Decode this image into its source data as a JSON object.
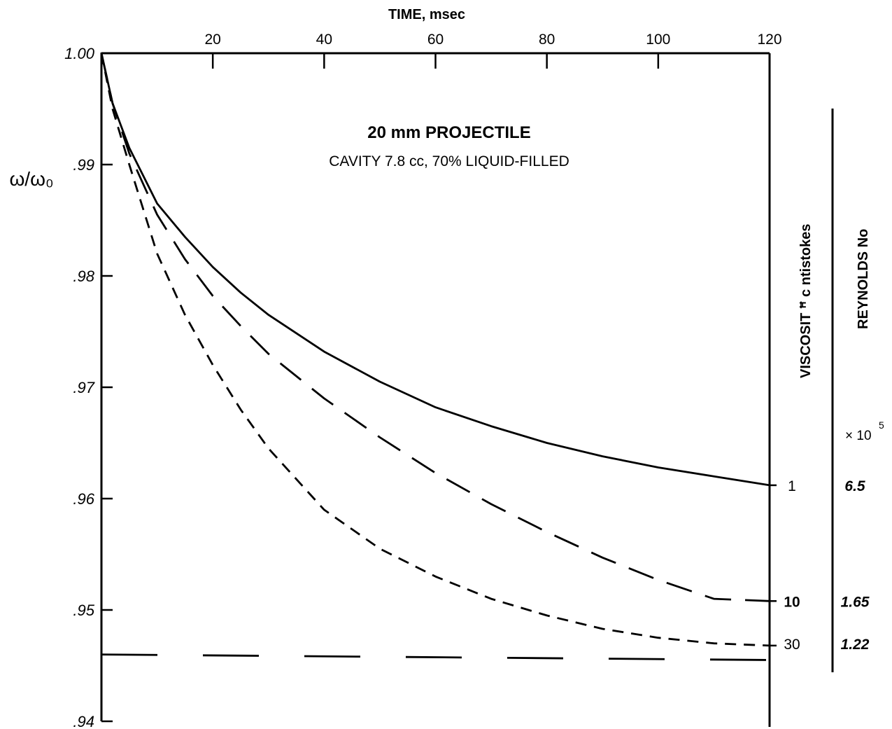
{
  "chart_data": {
    "type": "line",
    "title": "20 mm PROJECTILE",
    "subtitle": "CAVITY 7.8 cc, 70% LIQUID-FILLED",
    "xlabel": "TIME, msec",
    "ylabel": "ω/ω₀",
    "xlim": [
      0,
      120
    ],
    "ylim": [
      0.94,
      1.0
    ],
    "x_ticks": [
      "20",
      "40",
      "60",
      "80",
      "100",
      "120"
    ],
    "y_ticks": [
      ".94",
      ".95",
      ".96",
      ".97",
      ".98",
      ".99",
      "1.00"
    ],
    "series": [
      {
        "name": "1",
        "reynolds": "6.5",
        "style": "solid",
        "x": [
          0,
          2,
          5,
          10,
          15,
          20,
          25,
          30,
          40,
          50,
          60,
          70,
          80,
          90,
          100,
          110,
          120
        ],
        "y": [
          1.0,
          0.9955,
          0.9915,
          0.9865,
          0.9835,
          0.9808,
          0.9785,
          0.9765,
          0.9732,
          0.9705,
          0.9682,
          0.9665,
          0.965,
          0.9638,
          0.9628,
          0.962,
          0.9612
        ]
      },
      {
        "name": "10",
        "reynolds": "1.65",
        "style": "long-dash",
        "x": [
          0,
          2,
          5,
          10,
          15,
          20,
          25,
          30,
          40,
          50,
          60,
          70,
          80,
          90,
          100,
          110,
          120
        ],
        "y": [
          1.0,
          0.9955,
          0.991,
          0.9855,
          0.9815,
          0.9782,
          0.9755,
          0.973,
          0.969,
          0.9655,
          0.9623,
          0.9595,
          0.957,
          0.9547,
          0.9527,
          0.951,
          0.9508
        ]
      },
      {
        "name": "30",
        "reynolds": "1.22",
        "style": "short-dash",
        "x": [
          0,
          2,
          5,
          10,
          15,
          20,
          25,
          30,
          40,
          50,
          60,
          70,
          80,
          90,
          100,
          110,
          120
        ],
        "y": [
          1.0,
          0.995,
          0.99,
          0.982,
          0.9765,
          0.972,
          0.968,
          0.9645,
          0.959,
          0.9555,
          0.953,
          0.951,
          0.9495,
          0.9483,
          0.9475,
          0.947,
          0.9468
        ]
      },
      {
        "name": "",
        "style": "asymptote-dash",
        "x": [
          0,
          120
        ],
        "y": [
          0.946,
          0.9455
        ]
      }
    ],
    "right_column_labels": {
      "viscosity": "VISCOSIT ꟸ c ntistokes",
      "reynolds": "REYNOLDS No",
      "multiplier": "× 10",
      "exponent": "5"
    }
  }
}
